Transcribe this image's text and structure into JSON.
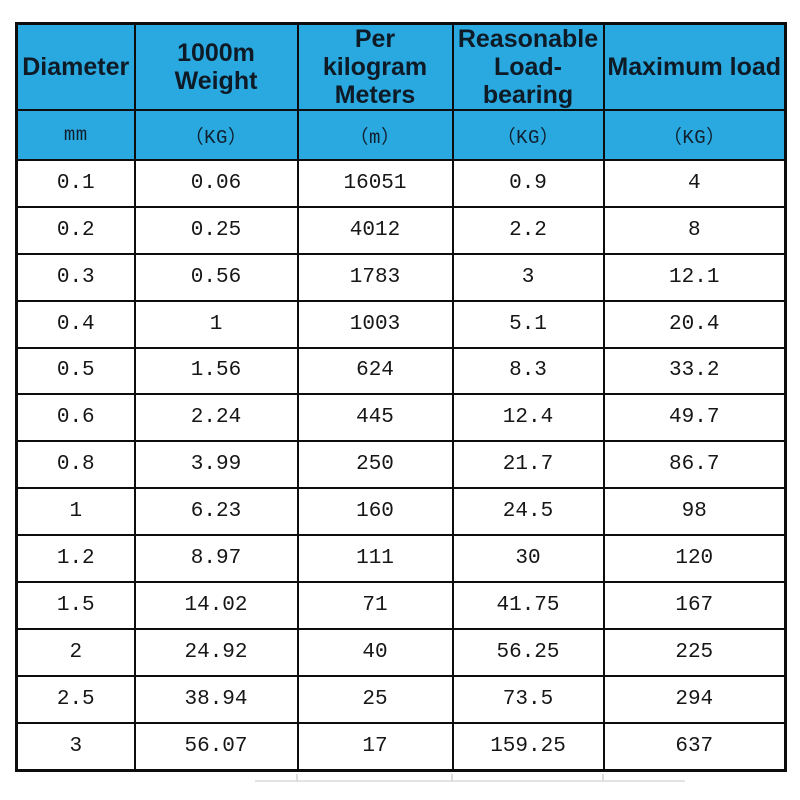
{
  "colors": {
    "header_bg": "#29a9e0",
    "border": "#0d0d0d",
    "header_text": "#0e1a26",
    "cell_text": "#161616",
    "page_bg": "#ffffff"
  },
  "table": {
    "columns": [
      {
        "label": "Diameter",
        "unit": "mm"
      },
      {
        "label": "1000m Weight",
        "unit": "（KG）"
      },
      {
        "label": "Per kilogram Meters",
        "unit": "（m）"
      },
      {
        "label": "Reasonable Load-bearing",
        "unit": "（KG）"
      },
      {
        "label": "Maximum load",
        "unit": "（KG）"
      }
    ],
    "rows": [
      [
        "0.1",
        "0.06",
        "16051",
        "0.9",
        "4"
      ],
      [
        "0.2",
        "0.25",
        "4012",
        "2.2",
        "8"
      ],
      [
        "0.3",
        "0.56",
        "1783",
        "3",
        "12.1"
      ],
      [
        "0.4",
        "1",
        "1003",
        "5.1",
        "20.4"
      ],
      [
        "0.5",
        "1.56",
        "624",
        "8.3",
        "33.2"
      ],
      [
        "0.6",
        "2.24",
        "445",
        "12.4",
        "49.7"
      ],
      [
        "0.8",
        "3.99",
        "250",
        "21.7",
        "86.7"
      ],
      [
        "1",
        "6.23",
        "160",
        "24.5",
        "98"
      ],
      [
        "1.2",
        "8.97",
        "111",
        "30",
        "120"
      ],
      [
        "1.5",
        "14.02",
        "71",
        "41.75",
        "167"
      ],
      [
        "2",
        "24.92",
        "40",
        "56.25",
        "225"
      ],
      [
        "2.5",
        "38.94",
        "25",
        "73.5",
        "294"
      ],
      [
        "3",
        "56.07",
        "17",
        "159.25",
        "637"
      ]
    ]
  },
  "chart_data": {
    "type": "table",
    "title": "",
    "columns": [
      "Diameter (mm)",
      "1000m Weight (KG)",
      "Per kilogram Meters (m)",
      "Reasonable Load-bearing (KG)",
      "Maximum load (KG)"
    ],
    "rows": [
      [
        0.1,
        0.06,
        16051,
        0.9,
        4
      ],
      [
        0.2,
        0.25,
        4012,
        2.2,
        8
      ],
      [
        0.3,
        0.56,
        1783,
        3,
        12.1
      ],
      [
        0.4,
        1,
        1003,
        5.1,
        20.4
      ],
      [
        0.5,
        1.56,
        624,
        8.3,
        33.2
      ],
      [
        0.6,
        2.24,
        445,
        12.4,
        49.7
      ],
      [
        0.8,
        3.99,
        250,
        21.7,
        86.7
      ],
      [
        1,
        6.23,
        160,
        24.5,
        98
      ],
      [
        1.2,
        8.97,
        111,
        30,
        120
      ],
      [
        1.5,
        14.02,
        71,
        41.75,
        167
      ],
      [
        2,
        24.92,
        40,
        56.25,
        225
      ],
      [
        2.5,
        38.94,
        25,
        73.5,
        294
      ],
      [
        3,
        56.07,
        17,
        159.25,
        637
      ]
    ]
  }
}
